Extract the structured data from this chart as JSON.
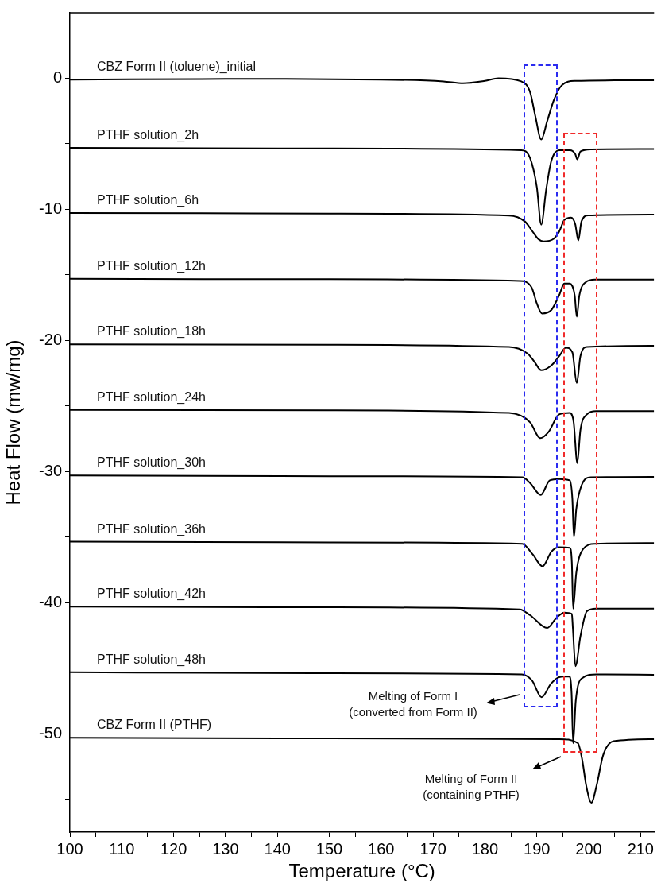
{
  "chart_data": {
    "type": "line",
    "xlabel": "Temperature (°C)",
    "ylabel": "Heat Flow (mw/mg)",
    "xlim": [
      100,
      212.6
    ],
    "ylim": [
      -57.5,
      5
    ],
    "xticks": [
      100,
      {
        "value": 105,
        "label": null
      },
      110,
      {
        "value": 115,
        "label": null
      },
      120,
      {
        "value": 125,
        "label": null
      },
      130,
      {
        "value": 135,
        "label": null
      },
      140,
      {
        "value": 145,
        "label": null
      },
      150,
      {
        "value": 155,
        "label": null
      },
      160,
      {
        "value": 165,
        "label": null
      },
      170,
      {
        "value": 175,
        "label": null
      },
      180,
      {
        "value": 185,
        "label": null
      },
      190,
      {
        "value": 195,
        "label": null
      },
      200,
      {
        "value": 205,
        "label": null
      },
      210
    ],
    "yticks": [
      0,
      {
        "value": -5,
        "label": null
      },
      -10,
      {
        "value": -15,
        "label": null
      },
      -20,
      {
        "value": -25,
        "label": null
      },
      -30,
      {
        "value": -35,
        "label": null
      },
      -40,
      {
        "value": -45,
        "label": null
      },
      -50,
      {
        "value": -55,
        "label": null
      }
    ],
    "grid": false,
    "legend": false,
    "marker": "none",
    "line_style": "solid",
    "annotations": [
      "Melting of Form I\n(converted from Form II)",
      "Melting of Form II\n(containing PTHF)"
    ],
    "series": [
      {
        "name": "CBZ Form II (toluene)_initial",
        "color": "#000000",
        "x": [
          100,
          130,
          160,
          172,
          175.8,
          180,
          182.6,
          187,
          188.7,
          189.7,
          190.85,
          192,
          193.3,
          194.8,
          197.4,
          205,
          212.6
        ],
        "values": [
          -0.1,
          -0.05,
          -0.1,
          -0.24,
          -0.38,
          -0.2,
          0,
          -0.24,
          -1.05,
          -2.86,
          -4.67,
          -3.27,
          -1.65,
          -0.54,
          -0.2,
          -0.16,
          -0.16
        ]
      },
      {
        "name": "PTHF solution_2h",
        "color": "#000000",
        "x": [
          100,
          150,
          187,
          188.7,
          190,
          190.85,
          191.8,
          192.8,
          194.3,
          196.4,
          197.4,
          197.8,
          198.4,
          200.4,
          212.6
        ],
        "values": [
          -5.3,
          -5.35,
          -5.48,
          -6.09,
          -8.3,
          -11.17,
          -8.5,
          -6.29,
          -5.48,
          -5.48,
          -5.78,
          -6.19,
          -5.58,
          -5.42,
          -5.4
        ]
      },
      {
        "name": "PTHF solution_6h",
        "color": "#000000",
        "x": [
          100,
          150,
          184.65,
          187.7,
          189.2,
          190.2,
          191.3,
          193.3,
          194.3,
          195.3,
          196.6,
          197.4,
          198.0,
          198.6,
          199.9,
          212.6
        ],
        "values": [
          -10.27,
          -10.32,
          -10.47,
          -10.92,
          -11.7,
          -12.23,
          -12.44,
          -12.23,
          -11.7,
          -10.82,
          -10.62,
          -11.12,
          -12.37,
          -10.92,
          -10.46,
          -10.4
        ]
      },
      {
        "name": "PTHF solution_12h",
        "color": "#000000",
        "x": [
          100,
          150,
          186.7,
          189.0,
          190.0,
          191.0,
          192.8,
          194.3,
          195.3,
          196.3,
          197.3,
          197.7,
          198.2,
          199.4,
          201.2,
          212.6
        ],
        "values": [
          -15.3,
          -15.33,
          -15.46,
          -15.96,
          -17.17,
          -17.94,
          -17.67,
          -16.56,
          -15.66,
          -15.66,
          -16.56,
          -18.18,
          -16.56,
          -15.56,
          -15.36,
          -15.36
        ]
      },
      {
        "name": "PTHF solution_18h",
        "color": "#000000",
        "x": [
          100,
          150,
          184.65,
          188.2,
          189.5,
          190.85,
          192.8,
          194.3,
          195.6,
          196.85,
          197.7,
          198.4,
          199.65,
          212.6
        ],
        "values": [
          -20.3,
          -20.33,
          -20.49,
          -20.99,
          -21.6,
          -22.27,
          -21.9,
          -21.2,
          -20.55,
          -20.9,
          -23.24,
          -21.2,
          -20.49,
          -20.4
        ]
      },
      {
        "name": "PTHF solution_24h",
        "color": "#000000",
        "x": [
          100,
          150,
          184.65,
          188.7,
          190.65,
          192.3,
          194.3,
          196.35,
          197.1,
          197.8,
          198.4,
          199.65,
          201.4,
          212.6
        ],
        "values": [
          -25.3,
          -25.33,
          -25.53,
          -26.24,
          -27.45,
          -26.95,
          -25.64,
          -25.53,
          -26.24,
          -29.36,
          -26.84,
          -25.64,
          -25.39,
          -25.39
        ]
      },
      {
        "name": "PTHF solution_30h",
        "color": "#000000",
        "x": [
          100,
          150,
          187.2,
          188.7,
          190.75,
          192.5,
          194.3,
          196.35,
          196.85,
          197.15,
          197.6,
          198.6,
          200.4,
          212.6
        ],
        "values": [
          -30.3,
          -30.35,
          -30.43,
          -30.87,
          -31.78,
          -30.67,
          -30.57,
          -30.67,
          -32.08,
          -35.0,
          -32.88,
          -31.07,
          -30.43,
          -30.4
        ]
      },
      {
        "name": "PTHF solution_36h",
        "color": "#000000",
        "x": [
          100,
          150,
          187.2,
          189.2,
          191.1,
          192.8,
          194.3,
          196.35,
          196.75,
          197.0,
          197.6,
          198.9,
          201.2,
          212.6
        ],
        "values": [
          -35.35,
          -35.4,
          -35.51,
          -36.31,
          -37.22,
          -36.11,
          -35.77,
          -35.81,
          -36.92,
          -40.45,
          -37.73,
          -35.92,
          -35.51,
          -35.45
        ]
      },
      {
        "name": "PTHF solution_42h",
        "color": "#000000",
        "x": [
          100,
          150,
          186.7,
          188.7,
          192.0,
          193.8,
          195.3,
          196.75,
          196.95,
          197.45,
          198.4,
          199.65,
          201.4,
          212.6
        ],
        "values": [
          -40.3,
          -40.35,
          -40.51,
          -40.95,
          -41.92,
          -41.15,
          -40.75,
          -40.85,
          -41.96,
          -44.84,
          -42.57,
          -40.65,
          -40.45,
          -40.45
        ]
      },
      {
        "name": "PTHF solution_48h",
        "color": "#000000",
        "x": [
          100,
          150,
          187.1,
          189.1,
          190.9,
          192.7,
          194.3,
          196.3,
          196.7,
          197.0,
          197.5,
          198.75,
          201.5,
          212.6
        ],
        "values": [
          -45.3,
          -45.38,
          -45.46,
          -45.94,
          -47.21,
          -46.19,
          -45.68,
          -45.62,
          -46.9,
          -50.72,
          -47.5,
          -45.75,
          -45.46,
          -45.5
        ]
      },
      {
        "name": "CBZ Form II (PTHF)",
        "color": "#000000",
        "x": [
          100,
          150,
          194.3,
          197.9,
          198.75,
          199.5,
          200.5,
          201.55,
          202.75,
          204.8,
          212.6
        ],
        "values": [
          -50.3,
          -50.35,
          -50.4,
          -50.7,
          -51.98,
          -53.9,
          -55.25,
          -53.9,
          -51.67,
          -50.56,
          -50.4
        ]
      }
    ]
  }
}
